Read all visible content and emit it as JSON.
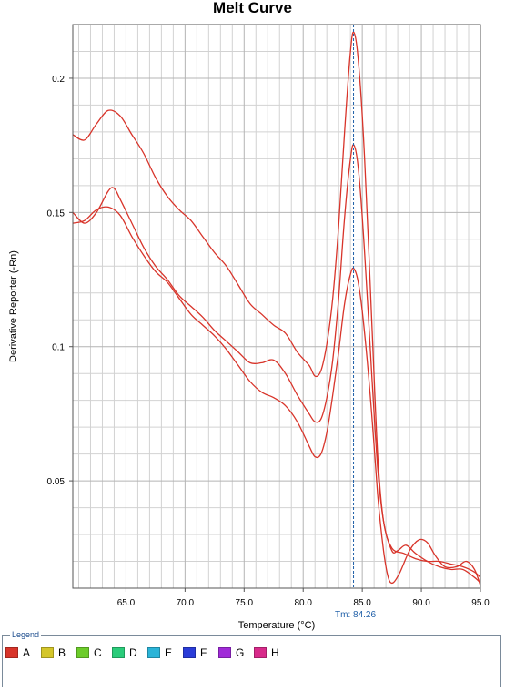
{
  "chart_data": {
    "type": "line",
    "title": "Melt Curve",
    "xlabel": "Temperature (°C)",
    "ylabel": "Derivative Reporter (-Rn)",
    "xlim": [
      60.5,
      95.0
    ],
    "ylim": [
      0.01,
      0.22
    ],
    "x_ticks": [
      "65.0",
      "70.0",
      "75.0",
      "80.0",
      "85.0",
      "90.0",
      "95.0"
    ],
    "y_ticks": [
      "0.05",
      "0.1",
      "0.15",
      "0.2"
    ],
    "grid": true,
    "tm_marker": {
      "x": 84.26,
      "label": "Tm: 84.26"
    },
    "line_color": "#d8342a",
    "marker_color": "#1f5fa8",
    "series": [
      {
        "points": [
          [
            60.5,
            0.179
          ],
          [
            61.5,
            0.177
          ],
          [
            62.5,
            0.183
          ],
          [
            63.5,
            0.188
          ],
          [
            64.5,
            0.186
          ],
          [
            65.5,
            0.179
          ],
          [
            66.5,
            0.172
          ],
          [
            67.5,
            0.163
          ],
          [
            68.5,
            0.156
          ],
          [
            69.5,
            0.151
          ],
          [
            70.5,
            0.147
          ],
          [
            71.5,
            0.141
          ],
          [
            72.5,
            0.135
          ],
          [
            73.5,
            0.13
          ],
          [
            74.5,
            0.123
          ],
          [
            75.5,
            0.116
          ],
          [
            76.5,
            0.112
          ],
          [
            77.5,
            0.108
          ],
          [
            78.5,
            0.105
          ],
          [
            79.5,
            0.098
          ],
          [
            80.5,
            0.093
          ],
          [
            81.0,
            0.089
          ],
          [
            81.5,
            0.091
          ],
          [
            82.0,
            0.101
          ],
          [
            82.5,
            0.118
          ],
          [
            83.0,
            0.145
          ],
          [
            83.5,
            0.18
          ],
          [
            84.0,
            0.21
          ],
          [
            84.3,
            0.217
          ],
          [
            84.7,
            0.205
          ],
          [
            85.2,
            0.17
          ],
          [
            85.8,
            0.11
          ],
          [
            86.3,
            0.06
          ],
          [
            86.8,
            0.035
          ],
          [
            87.5,
            0.025
          ],
          [
            88.5,
            0.023
          ],
          [
            89.5,
            0.021
          ],
          [
            90.5,
            0.02
          ],
          [
            91.5,
            0.02
          ],
          [
            92.5,
            0.019
          ],
          [
            93.5,
            0.018
          ],
          [
            94.5,
            0.016
          ],
          [
            95.0,
            0.014
          ]
        ]
      },
      {
        "points": [
          [
            60.5,
            0.15
          ],
          [
            61.5,
            0.146
          ],
          [
            62.5,
            0.15
          ],
          [
            63.5,
            0.158
          ],
          [
            64.0,
            0.159
          ],
          [
            64.5,
            0.155
          ],
          [
            65.5,
            0.146
          ],
          [
            66.5,
            0.137
          ],
          [
            67.5,
            0.13
          ],
          [
            68.5,
            0.125
          ],
          [
            69.5,
            0.119
          ],
          [
            70.5,
            0.115
          ],
          [
            71.5,
            0.111
          ],
          [
            72.5,
            0.106
          ],
          [
            73.5,
            0.102
          ],
          [
            74.5,
            0.098
          ],
          [
            75.5,
            0.094
          ],
          [
            76.5,
            0.094
          ],
          [
            77.5,
            0.095
          ],
          [
            78.5,
            0.09
          ],
          [
            79.5,
            0.082
          ],
          [
            80.5,
            0.075
          ],
          [
            81.0,
            0.072
          ],
          [
            81.5,
            0.073
          ],
          [
            82.0,
            0.081
          ],
          [
            82.5,
            0.095
          ],
          [
            83.0,
            0.118
          ],
          [
            83.5,
            0.148
          ],
          [
            84.0,
            0.17
          ],
          [
            84.3,
            0.175
          ],
          [
            84.7,
            0.165
          ],
          [
            85.2,
            0.135
          ],
          [
            85.8,
            0.09
          ],
          [
            86.3,
            0.055
          ],
          [
            86.8,
            0.035
          ],
          [
            87.5,
            0.024
          ],
          [
            88.0,
            0.024
          ],
          [
            88.7,
            0.026
          ],
          [
            89.5,
            0.023
          ],
          [
            90.5,
            0.02
          ],
          [
            91.5,
            0.018
          ],
          [
            92.5,
            0.017
          ],
          [
            93.5,
            0.017
          ],
          [
            94.5,
            0.014
          ],
          [
            95.0,
            0.012
          ]
        ]
      },
      {
        "points": [
          [
            60.5,
            0.146
          ],
          [
            61.5,
            0.147
          ],
          [
            62.5,
            0.151
          ],
          [
            63.5,
            0.152
          ],
          [
            64.5,
            0.149
          ],
          [
            65.5,
            0.141
          ],
          [
            66.5,
            0.134
          ],
          [
            67.5,
            0.128
          ],
          [
            68.5,
            0.124
          ],
          [
            69.5,
            0.118
          ],
          [
            70.5,
            0.112
          ],
          [
            71.5,
            0.108
          ],
          [
            72.5,
            0.104
          ],
          [
            73.5,
            0.099
          ],
          [
            74.5,
            0.093
          ],
          [
            75.5,
            0.087
          ],
          [
            76.5,
            0.083
          ],
          [
            77.5,
            0.081
          ],
          [
            78.5,
            0.078
          ],
          [
            79.5,
            0.072
          ],
          [
            80.5,
            0.063
          ],
          [
            81.0,
            0.059
          ],
          [
            81.5,
            0.06
          ],
          [
            82.0,
            0.068
          ],
          [
            82.5,
            0.082
          ],
          [
            83.0,
            0.098
          ],
          [
            83.5,
            0.116
          ],
          [
            84.0,
            0.127
          ],
          [
            84.3,
            0.129
          ],
          [
            84.7,
            0.123
          ],
          [
            85.2,
            0.105
          ],
          [
            85.8,
            0.075
          ],
          [
            86.3,
            0.045
          ],
          [
            86.8,
            0.024
          ],
          [
            87.2,
            0.014
          ],
          [
            87.6,
            0.012
          ],
          [
            88.2,
            0.016
          ],
          [
            89.0,
            0.024
          ],
          [
            89.8,
            0.028
          ],
          [
            90.5,
            0.027
          ],
          [
            91.2,
            0.022
          ],
          [
            92.0,
            0.018
          ],
          [
            93.0,
            0.018
          ],
          [
            93.8,
            0.02
          ],
          [
            94.5,
            0.017
          ],
          [
            95.0,
            0.011
          ]
        ]
      }
    ]
  },
  "legend": {
    "title": "Legend",
    "items": [
      {
        "label": "A",
        "color": "#d8342a"
      },
      {
        "label": "B",
        "color": "#d4c62a"
      },
      {
        "label": "C",
        "color": "#6ccc2a"
      },
      {
        "label": "D",
        "color": "#2acc7a"
      },
      {
        "label": "E",
        "color": "#2ab4d8"
      },
      {
        "label": "F",
        "color": "#2a3cd8"
      },
      {
        "label": "G",
        "color": "#a02ad8"
      },
      {
        "label": "H",
        "color": "#d82a8a"
      }
    ]
  }
}
